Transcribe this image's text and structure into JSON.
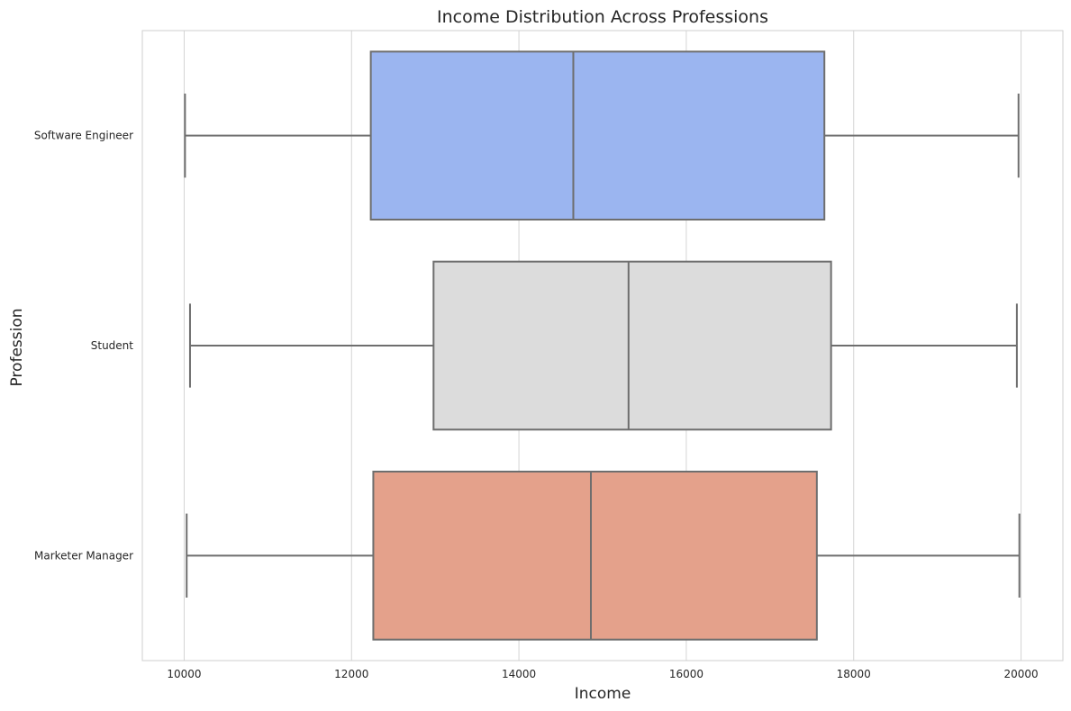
{
  "chart_data": {
    "type": "box",
    "orientation": "horizontal",
    "title": "Income Distribution Across Professions",
    "xlabel": "Income",
    "ylabel": "Profession",
    "xlim": [
      9500,
      20500
    ],
    "xticks": [
      10000,
      12000,
      14000,
      16000,
      18000,
      20000
    ],
    "grid": true,
    "categories": [
      "Software Engineer",
      "Student",
      "Marketer Manager"
    ],
    "boxes": [
      {
        "category": "Software Engineer",
        "whisker_low": 10010,
        "q1": 12230,
        "median": 14650,
        "q3": 17650,
        "whisker_high": 19970,
        "color": "#9bb5f0"
      },
      {
        "category": "Student",
        "whisker_low": 10070,
        "q1": 12980,
        "median": 15310,
        "q3": 17730,
        "whisker_high": 19950,
        "color": "#dcdcdc"
      },
      {
        "category": "Marketer Manager",
        "whisker_low": 10030,
        "q1": 12260,
        "median": 14860,
        "q3": 17560,
        "whisker_high": 19980,
        "color": "#e4a18b"
      }
    ],
    "line_color": "#6e6e6e",
    "grid_color": "#d4d4d4"
  }
}
